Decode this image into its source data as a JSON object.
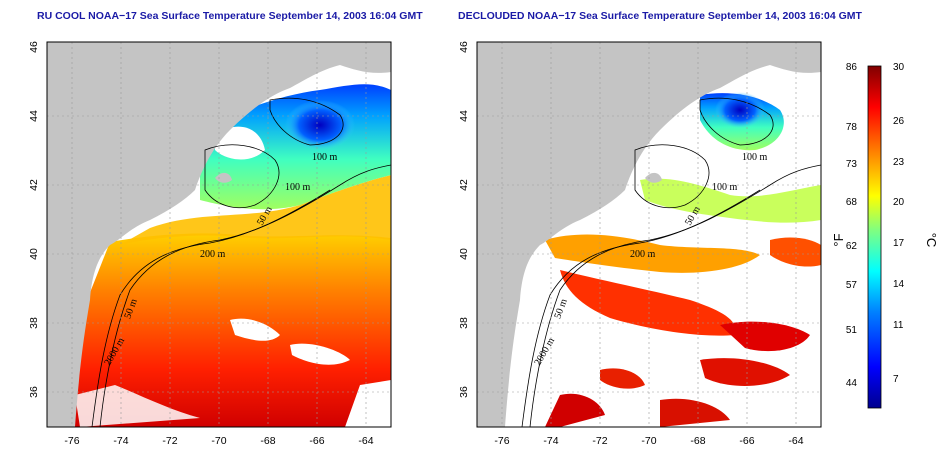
{
  "panels": [
    {
      "id": "left",
      "title": "RU COOL NOAA−17 Sea Surface Temperature September 14, 2003 16:04 GMT",
      "x_ticks": [
        "-76",
        "-74",
        "-72",
        "-70",
        "-68",
        "-66",
        "-64"
      ],
      "y_ticks": [
        "36",
        "38",
        "40",
        "42",
        "44",
        "46"
      ],
      "contour_labels": [
        "100 m",
        "100 m",
        "50 m",
        "200 m",
        "50 m",
        "2000 m"
      ]
    },
    {
      "id": "right",
      "title": "DECLOUDED NOAA−17 Sea Surface Temperature September 14, 2003 16:04 GMT",
      "x_ticks": [
        "-76",
        "-74",
        "-72",
        "-70",
        "-68",
        "-66",
        "-64"
      ],
      "y_ticks": [
        "36",
        "38",
        "40",
        "42",
        "44",
        "46"
      ],
      "contour_labels": [
        "100 m",
        "100 m",
        "50 m",
        "200 m",
        "50 m",
        "2000 m"
      ]
    }
  ],
  "colorbar": {
    "fahrenheit_ticks": [
      "86",
      "78",
      "73",
      "68",
      "62",
      "57",
      "51",
      "44"
    ],
    "celsius_ticks": [
      "30",
      "26",
      "23",
      "20",
      "17",
      "14",
      "11",
      "7"
    ],
    "fahrenheit_unit": "°F",
    "celsius_unit": "°C",
    "range_c": [
      5,
      30
    ],
    "colors": [
      "#00008f",
      "#0000ff",
      "#0080ff",
      "#00ffff",
      "#80ff80",
      "#ffff00",
      "#ff8000",
      "#ff0000",
      "#800000"
    ]
  },
  "colors": {
    "land": "#c4c4c4",
    "cloud": "#ffffff",
    "title": "#1a1aa6"
  }
}
